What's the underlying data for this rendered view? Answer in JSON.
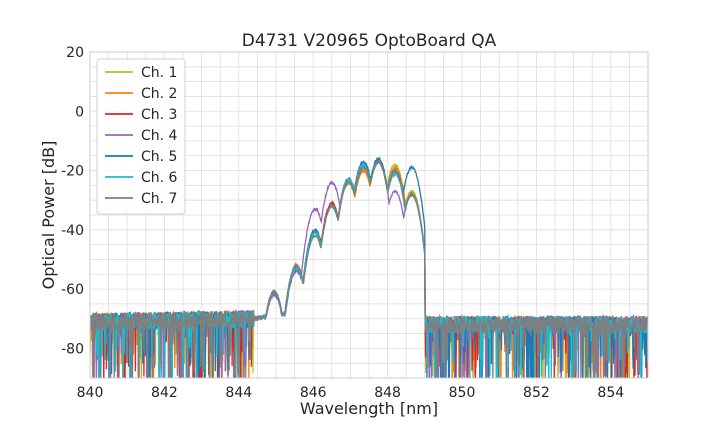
{
  "chart_data": {
    "type": "line",
    "title": "D4731 V20965 OptoBoard QA",
    "xlabel": "Wavelength [nm]",
    "ylabel": "Optical Power [dB]",
    "xlim": [
      840,
      855
    ],
    "ylim": [
      -90,
      20
    ],
    "xticks": [
      840,
      842,
      844,
      846,
      848,
      850,
      852,
      854
    ],
    "yticks": [
      -80,
      -60,
      -40,
      -20,
      0,
      20
    ],
    "grid": true,
    "legend_position": "upper-left",
    "series": [
      {
        "name": "Ch. 1",
        "color": "#bcbd22",
        "peaks": [
          {
            "x": 844.95,
            "y": -61
          },
          {
            "x": 845.55,
            "y": -52
          },
          {
            "x": 846.05,
            "y": -42
          },
          {
            "x": 846.5,
            "y": -32
          },
          {
            "x": 846.95,
            "y": -24
          },
          {
            "x": 847.35,
            "y": -20
          },
          {
            "x": 847.75,
            "y": -17
          },
          {
            "x": 848.2,
            "y": -18
          },
          {
            "x": 848.65,
            "y": -27
          }
        ]
      },
      {
        "name": "Ch. 2",
        "color": "#ff7f0e",
        "peaks": [
          {
            "x": 844.95,
            "y": -61
          },
          {
            "x": 845.55,
            "y": -52
          },
          {
            "x": 846.05,
            "y": -41
          },
          {
            "x": 846.5,
            "y": -32
          },
          {
            "x": 846.95,
            "y": -24
          },
          {
            "x": 847.35,
            "y": -20
          },
          {
            "x": 847.75,
            "y": -17
          },
          {
            "x": 848.2,
            "y": -19
          },
          {
            "x": 848.65,
            "y": -28
          }
        ]
      },
      {
        "name": "Ch. 3",
        "color": "#d62728",
        "peaks": [
          {
            "x": 844.95,
            "y": -61
          },
          {
            "x": 845.55,
            "y": -53
          },
          {
            "x": 846.05,
            "y": -41
          },
          {
            "x": 846.5,
            "y": -31
          },
          {
            "x": 846.95,
            "y": -23
          },
          {
            "x": 847.35,
            "y": -18
          },
          {
            "x": 847.75,
            "y": -17
          },
          {
            "x": 848.2,
            "y": -21
          },
          {
            "x": 848.65,
            "y": -28
          }
        ]
      },
      {
        "name": "Ch. 4",
        "color": "#9467bd",
        "peaks": [
          {
            "x": 844.95,
            "y": -62
          },
          {
            "x": 845.55,
            "y": -54
          },
          {
            "x": 846.05,
            "y": -33
          },
          {
            "x": 846.5,
            "y": -24
          },
          {
            "x": 846.95,
            "y": -23
          },
          {
            "x": 847.35,
            "y": -18
          },
          {
            "x": 847.75,
            "y": -17
          },
          {
            "x": 848.2,
            "y": -27
          },
          {
            "x": 848.65,
            "y": -28
          }
        ]
      },
      {
        "name": "Ch. 5",
        "color": "#1f77b4",
        "peaks": [
          {
            "x": 844.95,
            "y": -61
          },
          {
            "x": 845.55,
            "y": -53
          },
          {
            "x": 846.05,
            "y": -40
          },
          {
            "x": 846.5,
            "y": -32
          },
          {
            "x": 846.95,
            "y": -23
          },
          {
            "x": 847.35,
            "y": -17
          },
          {
            "x": 847.75,
            "y": -16
          },
          {
            "x": 848.2,
            "y": -20
          },
          {
            "x": 848.65,
            "y": -19
          }
        ]
      },
      {
        "name": "Ch. 6",
        "color": "#17becf",
        "peaks": [
          {
            "x": 844.95,
            "y": -61
          },
          {
            "x": 845.55,
            "y": -53
          },
          {
            "x": 846.05,
            "y": -41
          },
          {
            "x": 846.5,
            "y": -32
          },
          {
            "x": 846.95,
            "y": -23
          },
          {
            "x": 847.35,
            "y": -18
          },
          {
            "x": 847.75,
            "y": -17
          },
          {
            "x": 848.2,
            "y": -21
          },
          {
            "x": 848.65,
            "y": -28
          }
        ]
      },
      {
        "name": "Ch. 7",
        "color": "#7f7f7f",
        "peaks": [
          {
            "x": 844.95,
            "y": -61
          },
          {
            "x": 845.55,
            "y": -52
          },
          {
            "x": 846.05,
            "y": -42
          },
          {
            "x": 846.5,
            "y": -32
          },
          {
            "x": 846.95,
            "y": -24
          },
          {
            "x": 847.35,
            "y": -19
          },
          {
            "x": 847.75,
            "y": -17
          },
          {
            "x": 848.2,
            "y": -20
          },
          {
            "x": 848.65,
            "y": -28
          }
        ]
      }
    ]
  }
}
